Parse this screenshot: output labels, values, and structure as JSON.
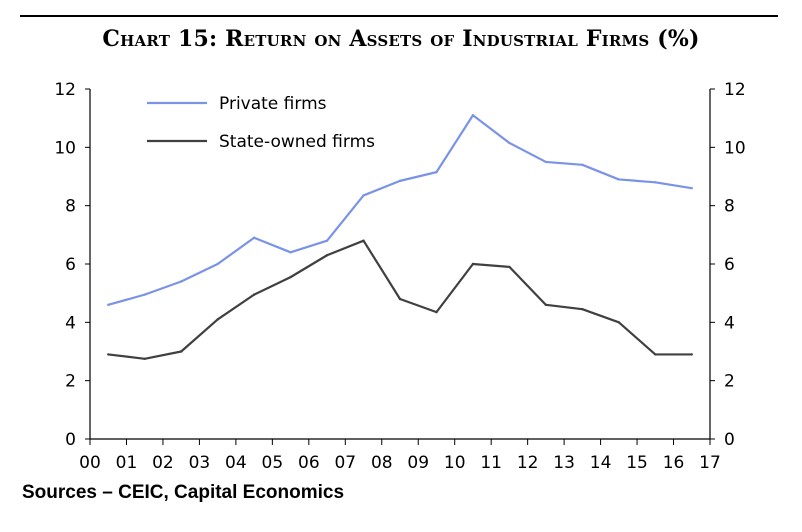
{
  "title": "Chart 15: Return on Assets of Industrial Firms (%)",
  "sources": "Sources – CEIC, Capital Economics",
  "chart_data": {
    "type": "line",
    "categories": [
      "00",
      "01",
      "02",
      "03",
      "04",
      "05",
      "06",
      "07",
      "08",
      "09",
      "10",
      "11",
      "12",
      "13",
      "14",
      "15",
      "16",
      "17"
    ],
    "ylim": [
      0,
      12
    ],
    "yticks": [
      0,
      2,
      4,
      6,
      8,
      10,
      12
    ],
    "grid": false,
    "legend": "top-left",
    "series": [
      {
        "name": "Private firms",
        "color": "#7a93e6",
        "x": [
          0.5,
          1.5,
          2.5,
          3.5,
          4.5,
          5.5,
          6.5,
          7.5,
          8.5,
          9.5,
          10.5,
          11.5,
          12.5,
          13.5,
          14.5,
          15.5,
          16.5
        ],
        "values": [
          4.6,
          4.95,
          5.4,
          6.0,
          6.9,
          6.4,
          6.8,
          8.35,
          8.85,
          9.15,
          11.1,
          10.15,
          9.5,
          9.4,
          8.9,
          8.8,
          8.6
        ]
      },
      {
        "name": "State-owned firms",
        "color": "#404040",
        "x": [
          0.5,
          1.5,
          2.5,
          3.5,
          4.5,
          5.5,
          6.5,
          7.5,
          8.5,
          9.5,
          10.5,
          11.5,
          12.5,
          13.5,
          14.5,
          15.5,
          16.5
        ],
        "values": [
          2.9,
          2.75,
          3.0,
          4.1,
          4.95,
          5.55,
          6.3,
          6.8,
          4.8,
          4.35,
          6.0,
          5.9,
          4.6,
          4.45,
          4.0,
          2.9,
          2.9
        ]
      }
    ]
  }
}
